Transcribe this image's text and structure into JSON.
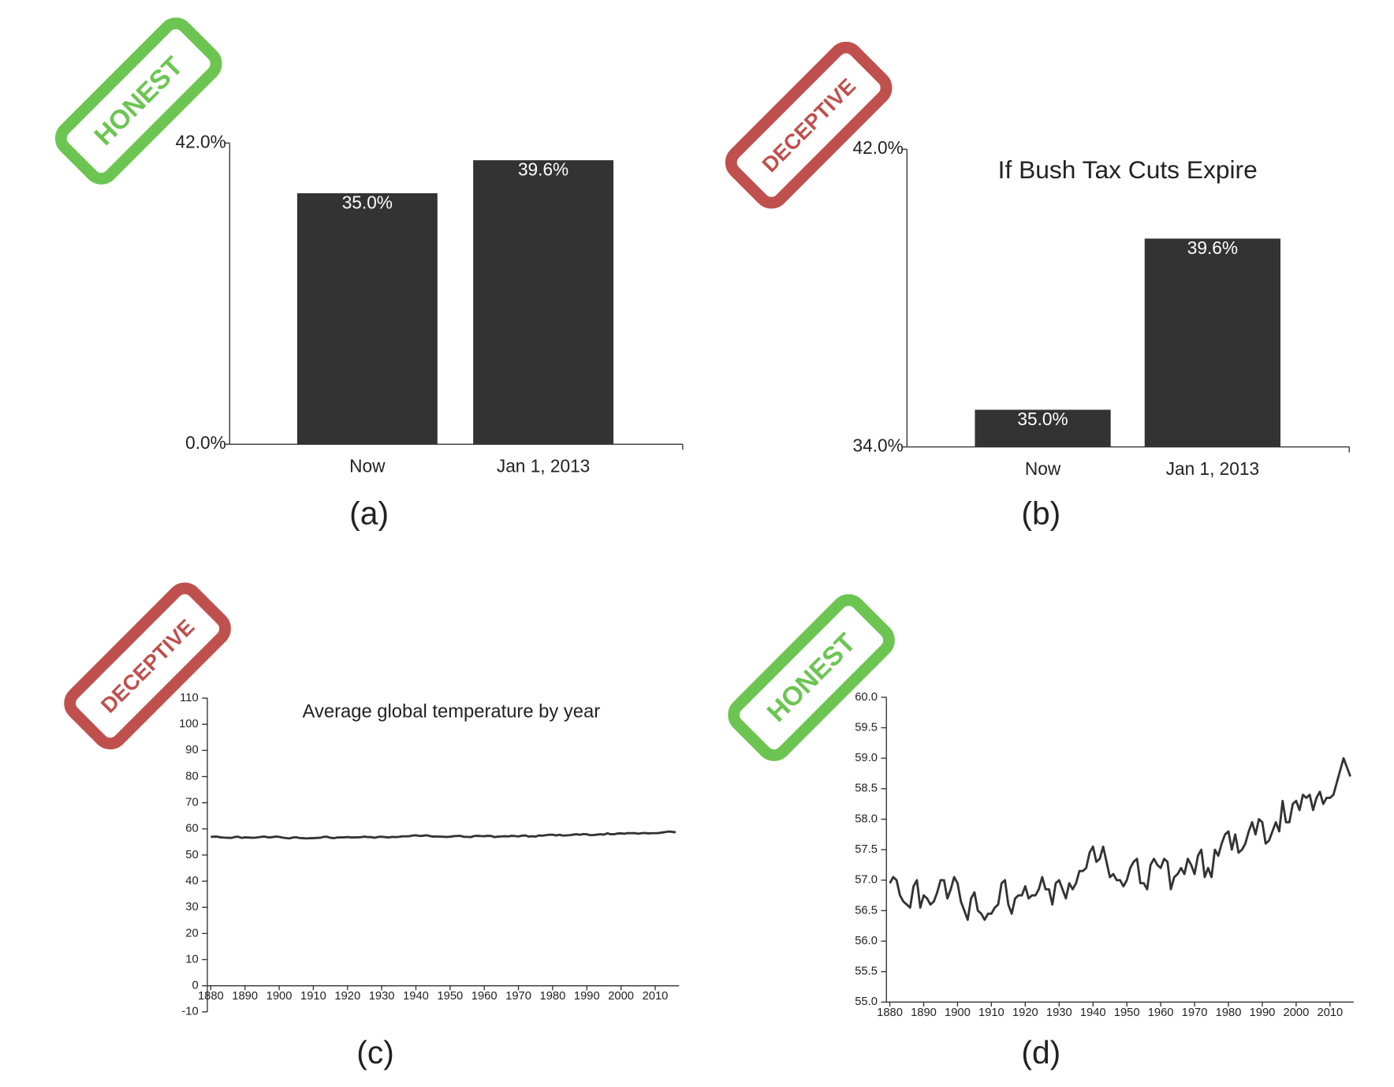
{
  "chart_data": [
    {
      "type": "bar",
      "stamp": "HONEST",
      "stamp_color": "#6cc551",
      "caption": "(a)",
      "categories": [
        "Now",
        "Jan 1, 2013"
      ],
      "values": [
        35.0,
        39.6
      ],
      "value_labels": [
        "35.0%",
        "39.6%"
      ],
      "color": "#333333",
      "ylim": [
        0,
        42
      ],
      "yticks": [
        {
          "value": 0,
          "label": "0.0%"
        },
        {
          "value": 42,
          "label": "42.0%"
        }
      ]
    },
    {
      "type": "bar",
      "stamp": "DECEPTIVE",
      "stamp_color": "#c0504d",
      "caption": "(b)",
      "title": "If Bush Tax Cuts Expire",
      "categories": [
        "Now",
        "Jan 1, 2013"
      ],
      "values": [
        35.0,
        39.6
      ],
      "value_labels": [
        "35.0%",
        "39.6%"
      ],
      "color": "#333333",
      "ylim": [
        34,
        42
      ],
      "yticks": [
        {
          "value": 34,
          "label": "34.0%"
        },
        {
          "value": 42,
          "label": "42.0%"
        }
      ]
    },
    {
      "type": "line",
      "stamp": "DECEPTIVE",
      "stamp_color": "#c0504d",
      "caption": "(c)",
      "title": "Average global temperature by year",
      "color": "#333333",
      "x": [
        1880,
        1881,
        1882,
        1883,
        1884,
        1885,
        1886,
        1887,
        1888,
        1889,
        1890,
        1891,
        1892,
        1893,
        1894,
        1895,
        1896,
        1897,
        1898,
        1899,
        1900,
        1901,
        1902,
        1903,
        1904,
        1905,
        1906,
        1907,
        1908,
        1909,
        1910,
        1911,
        1912,
        1913,
        1914,
        1915,
        1916,
        1917,
        1918,
        1919,
        1920,
        1921,
        1922,
        1923,
        1924,
        1925,
        1926,
        1927,
        1928,
        1929,
        1930,
        1931,
        1932,
        1933,
        1934,
        1935,
        1936,
        1937,
        1938,
        1939,
        1940,
        1941,
        1942,
        1943,
        1944,
        1945,
        1946,
        1947,
        1948,
        1949,
        1950,
        1951,
        1952,
        1953,
        1954,
        1955,
        1956,
        1957,
        1958,
        1959,
        1960,
        1961,
        1962,
        1963,
        1964,
        1965,
        1966,
        1967,
        1968,
        1969,
        1970,
        1971,
        1972,
        1973,
        1974,
        1975,
        1976,
        1977,
        1978,
        1979,
        1980,
        1981,
        1982,
        1983,
        1984,
        1985,
        1986,
        1987,
        1988,
        1989,
        1990,
        1991,
        1992,
        1993,
        1994,
        1995,
        1996,
        1997,
        1998,
        1999,
        2000,
        2001,
        2002,
        2003,
        2004,
        2005,
        2006,
        2007,
        2008,
        2009,
        2010,
        2011,
        2012,
        2013,
        2014,
        2015,
        2016
      ],
      "values": [
        56.95,
        57.05,
        57.0,
        56.75,
        56.65,
        56.6,
        56.55,
        56.9,
        57.0,
        56.55,
        56.75,
        56.7,
        56.6,
        56.65,
        56.8,
        57.0,
        57.0,
        56.7,
        56.85,
        57.05,
        56.95,
        56.65,
        56.5,
        56.35,
        56.7,
        56.8,
        56.5,
        56.45,
        56.35,
        56.45,
        56.45,
        56.55,
        56.6,
        56.95,
        57.0,
        56.6,
        56.45,
        56.7,
        56.75,
        56.75,
        56.9,
        56.7,
        56.75,
        56.75,
        56.85,
        57.05,
        56.85,
        56.85,
        56.6,
        56.95,
        57.0,
        56.85,
        56.7,
        56.95,
        56.85,
        56.95,
        57.15,
        57.15,
        57.2,
        57.45,
        57.55,
        57.3,
        57.35,
        57.55,
        57.3,
        57.05,
        57.1,
        57.0,
        57.0,
        56.9,
        57.0,
        57.2,
        57.3,
        57.35,
        56.95,
        56.95,
        56.85,
        57.25,
        57.35,
        57.25,
        57.2,
        57.35,
        57.3,
        56.85,
        57.05,
        57.1,
        57.2,
        57.1,
        57.35,
        57.25,
        57.1,
        57.4,
        57.5,
        57.05,
        57.2,
        57.05,
        57.5,
        57.4,
        57.6,
        57.75,
        57.8,
        57.5,
        57.75,
        57.45,
        57.5,
        57.6,
        57.8,
        57.95,
        57.75,
        58.0,
        57.95,
        57.6,
        57.65,
        57.8,
        57.95,
        57.8,
        58.3,
        57.95,
        57.95,
        58.25,
        58.3,
        58.15,
        58.4,
        58.35,
        58.4,
        58.15,
        58.35,
        58.45,
        58.25,
        58.35,
        58.35,
        58.4,
        58.6,
        58.8,
        59.0,
        58.85,
        58.7
      ],
      "xlim": [
        1879,
        2017
      ],
      "xticks": [
        1880,
        1890,
        1900,
        1910,
        1920,
        1930,
        1940,
        1950,
        1960,
        1970,
        1980,
        1990,
        2000,
        2010
      ],
      "ylim": [
        -10,
        110
      ],
      "yticks": [
        -10,
        0,
        10,
        20,
        30,
        40,
        50,
        60,
        70,
        80,
        90,
        100,
        110
      ]
    },
    {
      "type": "line",
      "stamp": "HONEST",
      "stamp_color": "#6cc551",
      "caption": "(d)",
      "color": "#333333",
      "x": [
        1880,
        1881,
        1882,
        1883,
        1884,
        1885,
        1886,
        1887,
        1888,
        1889,
        1890,
        1891,
        1892,
        1893,
        1894,
        1895,
        1896,
        1897,
        1898,
        1899,
        1900,
        1901,
        1902,
        1903,
        1904,
        1905,
        1906,
        1907,
        1908,
        1909,
        1910,
        1911,
        1912,
        1913,
        1914,
        1915,
        1916,
        1917,
        1918,
        1919,
        1920,
        1921,
        1922,
        1923,
        1924,
        1925,
        1926,
        1927,
        1928,
        1929,
        1930,
        1931,
        1932,
        1933,
        1934,
        1935,
        1936,
        1937,
        1938,
        1939,
        1940,
        1941,
        1942,
        1943,
        1944,
        1945,
        1946,
        1947,
        1948,
        1949,
        1950,
        1951,
        1952,
        1953,
        1954,
        1955,
        1956,
        1957,
        1958,
        1959,
        1960,
        1961,
        1962,
        1963,
        1964,
        1965,
        1966,
        1967,
        1968,
        1969,
        1970,
        1971,
        1972,
        1973,
        1974,
        1975,
        1976,
        1977,
        1978,
        1979,
        1980,
        1981,
        1982,
        1983,
        1984,
        1985,
        1986,
        1987,
        1988,
        1989,
        1990,
        1991,
        1992,
        1993,
        1994,
        1995,
        1996,
        1997,
        1998,
        1999,
        2000,
        2001,
        2002,
        2003,
        2004,
        2005,
        2006,
        2007,
        2008,
        2009,
        2010,
        2011,
        2012,
        2013,
        2014,
        2015,
        2016
      ],
      "values": [
        56.95,
        57.05,
        57.0,
        56.75,
        56.65,
        56.6,
        56.55,
        56.9,
        57.0,
        56.55,
        56.75,
        56.7,
        56.6,
        56.65,
        56.8,
        57.0,
        57.0,
        56.7,
        56.85,
        57.05,
        56.95,
        56.65,
        56.5,
        56.35,
        56.7,
        56.8,
        56.5,
        56.45,
        56.35,
        56.45,
        56.45,
        56.55,
        56.6,
        56.95,
        57.0,
        56.6,
        56.45,
        56.7,
        56.75,
        56.75,
        56.9,
        56.7,
        56.75,
        56.75,
        56.85,
        57.05,
        56.85,
        56.85,
        56.6,
        56.95,
        57.0,
        56.85,
        56.7,
        56.95,
        56.85,
        56.95,
        57.15,
        57.15,
        57.2,
        57.45,
        57.55,
        57.3,
        57.35,
        57.55,
        57.3,
        57.05,
        57.1,
        57.0,
        57.0,
        56.9,
        57.0,
        57.2,
        57.3,
        57.35,
        56.95,
        56.95,
        56.85,
        57.25,
        57.35,
        57.25,
        57.2,
        57.35,
        57.3,
        56.85,
        57.05,
        57.1,
        57.2,
        57.1,
        57.35,
        57.25,
        57.1,
        57.4,
        57.5,
        57.05,
        57.2,
        57.05,
        57.5,
        57.4,
        57.6,
        57.75,
        57.8,
        57.5,
        57.75,
        57.45,
        57.5,
        57.6,
        57.8,
        57.95,
        57.75,
        58.0,
        57.95,
        57.6,
        57.65,
        57.8,
        57.95,
        57.8,
        58.3,
        57.95,
        57.95,
        58.25,
        58.3,
        58.15,
        58.4,
        58.35,
        58.4,
        58.15,
        58.35,
        58.45,
        58.25,
        58.35,
        58.35,
        58.4,
        58.6,
        58.8,
        59.0,
        58.85,
        58.7
      ],
      "xlim": [
        1879,
        2017
      ],
      "xticks": [
        1880,
        1890,
        1900,
        1910,
        1920,
        1930,
        1940,
        1950,
        1960,
        1970,
        1980,
        1990,
        2000,
        2010
      ],
      "ylim": [
        55,
        60
      ],
      "yticks": [
        {
          "value": 55,
          "label": "55.0"
        },
        {
          "value": 55.5,
          "label": "55.5"
        },
        {
          "value": 56,
          "label": "56.0"
        },
        {
          "value": 56.5,
          "label": "56.5"
        },
        {
          "value": 57,
          "label": "57.0"
        },
        {
          "value": 57.5,
          "label": "57.5"
        },
        {
          "value": 58,
          "label": "58.0"
        },
        {
          "value": 58.5,
          "label": "58.5"
        },
        {
          "value": 59,
          "label": "59.0"
        },
        {
          "value": 59.5,
          "label": "59.5"
        },
        {
          "value": 60,
          "label": "60.0"
        }
      ]
    }
  ]
}
